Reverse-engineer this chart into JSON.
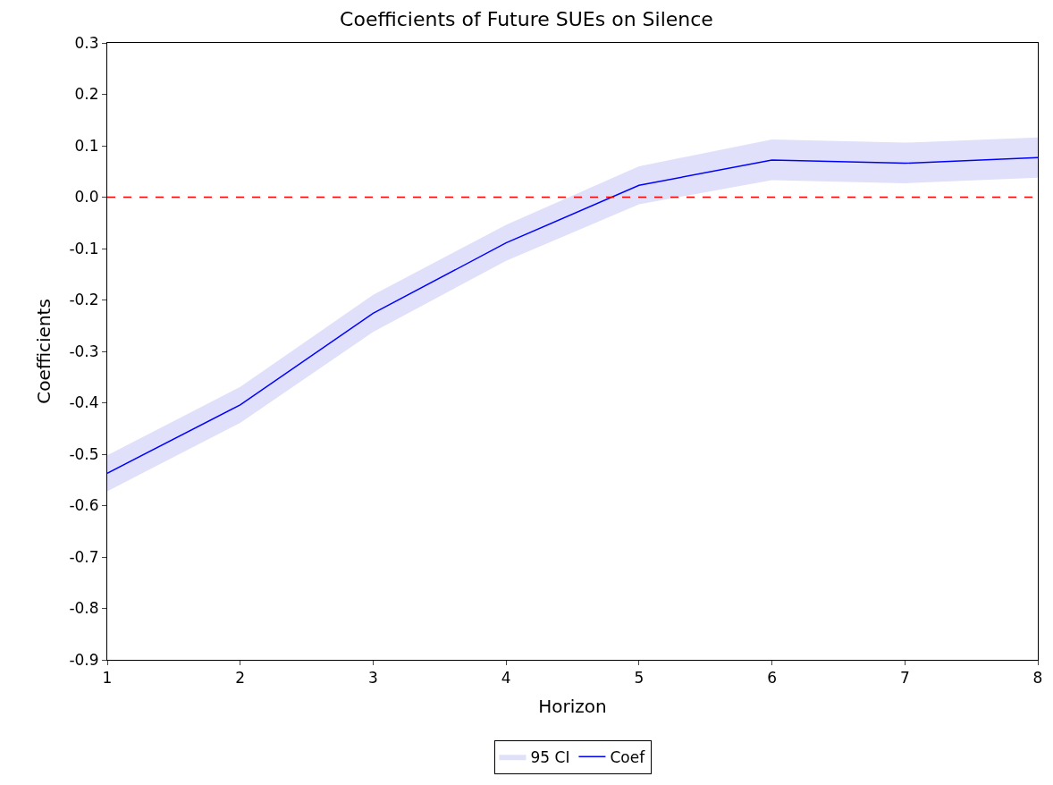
{
  "chart_data": {
    "type": "line",
    "title": "Coefficients of Future SUEs on Silence",
    "xlabel": "Horizon",
    "ylabel": "Coefficients",
    "x": [
      1,
      2,
      3,
      4,
      5,
      6,
      7,
      8
    ],
    "series": [
      {
        "name": "Coef",
        "color": "#0000ff",
        "values": [
          -0.537,
          -0.404,
          -0.226,
          -0.089,
          0.023,
          0.072,
          0.066,
          0.077
        ],
        "lower": [
          -0.572,
          -0.439,
          -0.262,
          -0.124,
          -0.014,
          0.033,
          0.027,
          0.038
        ],
        "upper": [
          -0.502,
          -0.369,
          -0.19,
          -0.054,
          0.06,
          0.112,
          0.106,
          0.116
        ]
      }
    ],
    "annotations": [
      "95 CI"
    ],
    "xlim": [
      1,
      8
    ],
    "xticks": [
      1,
      2,
      3,
      4,
      5,
      6,
      7,
      8
    ],
    "ylim": [
      -0.9,
      0.3
    ],
    "yticks": [
      {
        "value": -0.9,
        "label": "-0.9"
      },
      {
        "value": -0.8,
        "label": "-0.8"
      },
      {
        "value": -0.7,
        "label": "-0.7"
      },
      {
        "value": -0.6,
        "label": "-0.6"
      },
      {
        "value": -0.5,
        "label": "-0.5"
      },
      {
        "value": -0.4,
        "label": "-0.4"
      },
      {
        "value": -0.3,
        "label": "-0.3"
      },
      {
        "value": -0.2,
        "label": "-0.2"
      },
      {
        "value": -0.1,
        "label": "-0.1"
      },
      {
        "value": 0,
        "label": "0.0"
      },
      {
        "value": 0.1,
        "label": "0.1"
      },
      {
        "value": 0.2,
        "label": "0.2"
      },
      {
        "value": 0.3,
        "label": "0.3"
      }
    ],
    "ref_lines": [
      {
        "axis": "y",
        "value": 0,
        "color": "#ff0000",
        "line_style": "dashed"
      }
    ],
    "grid": false,
    "legend": "bottom",
    "marker": "none",
    "line_style": "solid"
  }
}
